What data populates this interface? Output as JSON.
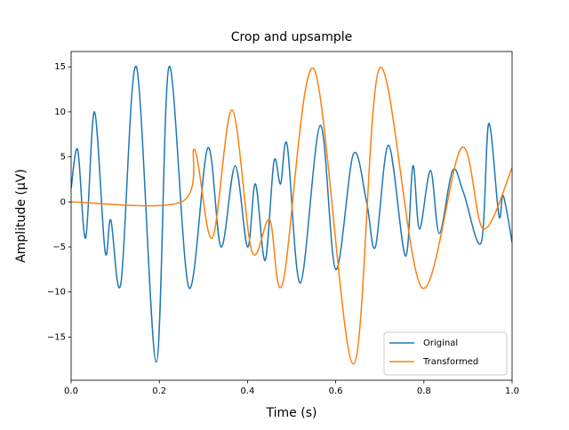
{
  "chart_data": {
    "type": "line",
    "title": "Crop and upsample",
    "xlabel": "Time (s)",
    "ylabel": "Amplitude (µV)",
    "xlim": [
      0,
      1
    ],
    "ylim": [
      -19.8,
      16.7
    ],
    "xticks": [
      {
        "value": 0,
        "label": "0.0"
      },
      0.2,
      0.4,
      0.6,
      0.8,
      {
        "value": 1,
        "label": "1.0"
      }
    ],
    "yticks": [
      {
        "value": -15,
        "label": "−15"
      },
      {
        "value": -10,
        "label": "−10"
      },
      {
        "value": -5,
        "label": "−5"
      },
      0,
      5,
      10,
      15
    ],
    "grid": false,
    "legend": "lower right",
    "series": [
      {
        "name": "Original",
        "color": "#1f77b4",
        "x": [
          0,
          0.015,
          0.033,
          0.053,
          0.077,
          0.09,
          0.113,
          0.148,
          0.193,
          0.222,
          0.267,
          0.31,
          0.34,
          0.372,
          0.4,
          0.418,
          0.44,
          0.46,
          0.475,
          0.49,
          0.52,
          0.565,
          0.6,
          0.64,
          0.67,
          0.69,
          0.72,
          0.758,
          0.775,
          0.79,
          0.815,
          0.835,
          0.865,
          0.89,
          0.93,
          0.947,
          0.97,
          0.98,
          1.0
        ],
        "values": [
          1.5,
          5.8,
          -4,
          10,
          -5.5,
          -2,
          -9,
          15,
          -17.8,
          15,
          -9.5,
          6,
          -5,
          4,
          -5,
          2,
          -6.5,
          4.5,
          2,
          6.3,
          -9,
          8.5,
          -7.5,
          5.3,
          0,
          -5,
          6.3,
          -6,
          4,
          -3,
          3.5,
          -3.5,
          3.5,
          1,
          -4.5,
          8.7,
          -1.5,
          0.7,
          -4.5
        ]
      },
      {
        "name": "Transformed",
        "color": "#ff7f0e",
        "x": [
          0,
          0.25,
          0.28,
          0.32,
          0.365,
          0.41,
          0.45,
          0.48,
          0.55,
          0.64,
          0.7,
          0.795,
          0.885,
          0.935,
          1.0
        ],
        "values": [
          0,
          0,
          5.8,
          -4,
          10.2,
          -5.5,
          -2,
          -9,
          14.8,
          -18,
          14.9,
          -9.5,
          6,
          -3,
          3.8
        ]
      }
    ]
  }
}
